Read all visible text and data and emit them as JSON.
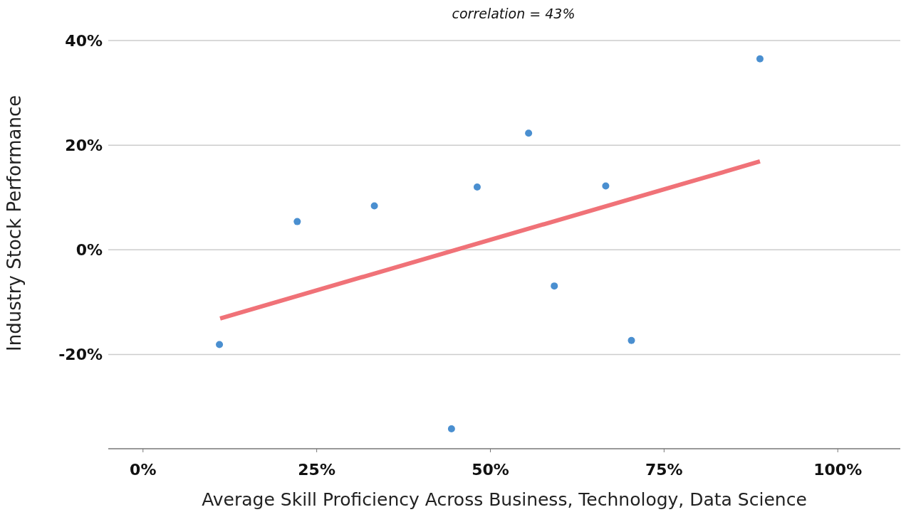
{
  "chart_data": {
    "type": "scatter",
    "title": "correlation = 43%",
    "xlabel": "Average Skill Proficiency Across Business, Technology, Data Science",
    "ylabel": "Industry Stock Performance",
    "series": [
      {
        "color": "#4a8fd0",
        "x": [
          11.0,
          22.2,
          33.3,
          44.4,
          48.1,
          55.5,
          59.2,
          66.6,
          70.3,
          88.8
        ],
        "values": [
          -18.1,
          5.4,
          8.4,
          -34.2,
          12.0,
          22.3,
          -6.9,
          12.2,
          -17.3,
          36.5
        ]
      },
      {
        "type": "line",
        "marker": "none",
        "color": "#f07278",
        "x": [
          11.1,
          88.8
        ],
        "values": [
          -13.1,
          16.9
        ]
      }
    ],
    "xlim": [
      -5,
      109
    ],
    "xticks": [
      {
        "value": 0,
        "label": "0%"
      },
      {
        "value": 25,
        "label": "25%"
      },
      {
        "value": 50,
        "label": "50%"
      },
      {
        "value": 75,
        "label": "75%"
      },
      {
        "value": 100,
        "label": "100%"
      }
    ],
    "ylim": [
      -38,
      40
    ],
    "yticks": [
      {
        "value": -20,
        "label": "-20%"
      },
      {
        "value": 0,
        "label": "0%"
      },
      {
        "value": 20,
        "label": "20%"
      },
      {
        "value": 40,
        "label": "40%"
      }
    ],
    "grid": "y",
    "marker": "circle",
    "legend": false
  }
}
